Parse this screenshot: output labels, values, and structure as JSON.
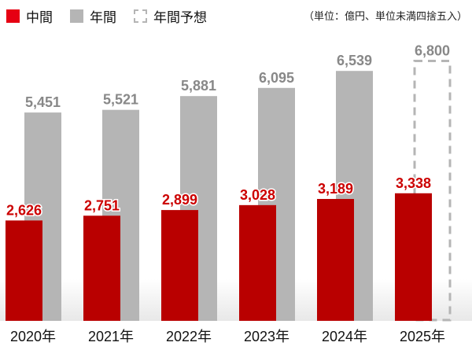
{
  "legend": [
    {
      "label": "中間",
      "color": "#e60012",
      "style": "solid"
    },
    {
      "label": "年間",
      "color": "#b5b5b5",
      "style": "solid"
    },
    {
      "label": "年間予想",
      "color": "#b5b5b5",
      "style": "dashed"
    }
  ],
  "unit_note": "（単位：億円、単位未満四捨五入）",
  "chart_data": {
    "type": "bar",
    "categories": [
      "2020年",
      "2021年",
      "2022年",
      "2023年",
      "2024年",
      "2025年"
    ],
    "series": [
      {
        "name": "中間",
        "color": "#b90000",
        "label_color": "#cc0000",
        "values": [
          2626,
          2751,
          2899,
          3028,
          3189,
          3338
        ]
      },
      {
        "name": "年間",
        "color": "#b5b5b5",
        "label_color": "#888888",
        "values": [
          5451,
          5521,
          5881,
          6095,
          6539,
          null
        ]
      },
      {
        "name": "年間予想",
        "color": "#b5b5b5",
        "label_color": "#888888",
        "style": "dashed",
        "values": [
          null,
          null,
          null,
          null,
          null,
          6800
        ]
      }
    ],
    "value_labels": {
      "中間": [
        "2,626",
        "2,751",
        "2,899",
        "3,028",
        "3,189",
        "3,338"
      ],
      "年間": [
        "5,451",
        "5,521",
        "5,881",
        "6,095",
        "6,539",
        null
      ],
      "年間予想": [
        null,
        null,
        null,
        null,
        null,
        "6,800"
      ]
    },
    "ylim": [
      0,
      8400
    ],
    "grid": false,
    "legend_position": "top-left"
  }
}
